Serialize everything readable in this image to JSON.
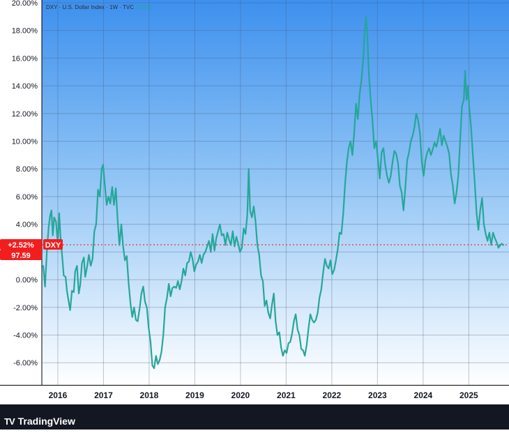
{
  "chart_data": {
    "type": "line",
    "legend_text": {
      "symbol": "DXY",
      "name": "U.S. Dollar Index",
      "interval": "1W",
      "source": "TVC",
      "change": "2.52%"
    },
    "y_ticks": [
      "20.00%",
      "18.00%",
      "16.00%",
      "14.00%",
      "12.00%",
      "10.00%",
      "8.00%",
      "6.00%",
      "4.00%",
      "2.00%",
      "0.00%",
      "-2.00%",
      "-4.00%",
      "-6.00%"
    ],
    "y_tick_values": [
      20,
      18,
      16,
      14,
      12,
      10,
      8,
      6,
      4,
      2,
      0,
      -2,
      -4,
      -6
    ],
    "ylim": [
      -7.6,
      20.2
    ],
    "x_ticks": [
      "2016",
      "2017",
      "2018",
      "2019",
      "2020",
      "2021",
      "2022",
      "2023",
      "2024",
      "2025"
    ],
    "x_tick_values": [
      2016,
      2017,
      2018,
      2019,
      2020,
      2021,
      2022,
      2023,
      2024,
      2025
    ],
    "xlim": [
      2015.65,
      2025.88
    ],
    "series": [
      {
        "values": [
          [
            2015.68,
            1.0
          ],
          [
            2015.72,
            -0.5
          ],
          [
            2015.76,
            2.0
          ],
          [
            2015.8,
            3.8
          ],
          [
            2015.83,
            4.6
          ],
          [
            2015.86,
            5.0
          ],
          [
            2015.89,
            3.2
          ],
          [
            2015.92,
            4.5
          ],
          [
            2015.96,
            4.2
          ],
          [
            2016.0,
            2.6
          ],
          [
            2016.03,
            4.8
          ],
          [
            2016.06,
            3.0
          ],
          [
            2016.1,
            1.5
          ],
          [
            2016.13,
            0.3
          ],
          [
            2016.17,
            0.2
          ],
          [
            2016.2,
            -0.8
          ],
          [
            2016.24,
            -1.6
          ],
          [
            2016.27,
            -2.2
          ],
          [
            2016.31,
            -0.8
          ],
          [
            2016.35,
            -0.9
          ],
          [
            2016.38,
            0.6
          ],
          [
            2016.42,
            1.0
          ],
          [
            2016.46,
            -1.0
          ],
          [
            2016.49,
            -0.4
          ],
          [
            2016.53,
            1.2
          ],
          [
            2016.57,
            1.6
          ],
          [
            2016.6,
            0.2
          ],
          [
            2016.64,
            0.9
          ],
          [
            2016.68,
            1.8
          ],
          [
            2016.72,
            1.0
          ],
          [
            2016.76,
            1.5
          ],
          [
            2016.8,
            3.5
          ],
          [
            2016.84,
            4.0
          ],
          [
            2016.88,
            6.5
          ],
          [
            2016.92,
            6.0
          ],
          [
            2016.96,
            8.0
          ],
          [
            2016.99,
            8.3
          ],
          [
            2017.03,
            6.8
          ],
          [
            2017.07,
            5.4
          ],
          [
            2017.11,
            6.0
          ],
          [
            2017.15,
            5.5
          ],
          [
            2017.19,
            6.7
          ],
          [
            2017.23,
            5.4
          ],
          [
            2017.27,
            6.6
          ],
          [
            2017.31,
            4.3
          ],
          [
            2017.35,
            2.5
          ],
          [
            2017.39,
            4.0
          ],
          [
            2017.43,
            2.4
          ],
          [
            2017.47,
            1.4
          ],
          [
            2017.51,
            1.7
          ],
          [
            2017.55,
            -0.2
          ],
          [
            2017.59,
            -1.7
          ],
          [
            2017.63,
            -2.7
          ],
          [
            2017.67,
            -2.0
          ],
          [
            2017.71,
            -2.9
          ],
          [
            2017.75,
            -3.0
          ],
          [
            2017.79,
            -2.1
          ],
          [
            2017.83,
            -1.0
          ],
          [
            2017.87,
            -0.5
          ],
          [
            2017.91,
            -1.6
          ],
          [
            2017.95,
            -2.0
          ],
          [
            2017.99,
            -3.5
          ],
          [
            2018.03,
            -4.5
          ],
          [
            2018.07,
            -6.2
          ],
          [
            2018.11,
            -6.4
          ],
          [
            2018.15,
            -5.5
          ],
          [
            2018.19,
            -6.1
          ],
          [
            2018.23,
            -5.8
          ],
          [
            2018.27,
            -5.2
          ],
          [
            2018.31,
            -4.0
          ],
          [
            2018.35,
            -2.0
          ],
          [
            2018.39,
            -1.3
          ],
          [
            2018.43,
            -0.3
          ],
          [
            2018.47,
            -1.2
          ],
          [
            2018.51,
            -0.6
          ],
          [
            2018.55,
            -0.5
          ],
          [
            2018.59,
            -0.6
          ],
          [
            2018.63,
            -0.1
          ],
          [
            2018.67,
            -0.7
          ],
          [
            2018.71,
            -0.1
          ],
          [
            2018.75,
            0.8
          ],
          [
            2018.79,
            0.3
          ],
          [
            2018.83,
            1.2
          ],
          [
            2018.87,
            1.3
          ],
          [
            2018.91,
            2.0
          ],
          [
            2018.95,
            1.5
          ],
          [
            2018.99,
            0.6
          ],
          [
            2019.03,
            1.1
          ],
          [
            2019.07,
            1.3
          ],
          [
            2019.11,
            1.8
          ],
          [
            2019.15,
            1.2
          ],
          [
            2019.19,
            1.8
          ],
          [
            2019.23,
            2.0
          ],
          [
            2019.27,
            2.4
          ],
          [
            2019.31,
            2.8
          ],
          [
            2019.35,
            2.0
          ],
          [
            2019.39,
            3.3
          ],
          [
            2019.43,
            2.1
          ],
          [
            2019.47,
            3.0
          ],
          [
            2019.51,
            3.5
          ],
          [
            2019.55,
            4.0
          ],
          [
            2019.59,
            3.2
          ],
          [
            2019.63,
            3.3
          ],
          [
            2019.67,
            2.5
          ],
          [
            2019.71,
            3.4
          ],
          [
            2019.75,
            2.9
          ],
          [
            2019.79,
            2.5
          ],
          [
            2019.83,
            3.5
          ],
          [
            2019.87,
            2.4
          ],
          [
            2019.91,
            3.1
          ],
          [
            2019.95,
            2.6
          ],
          [
            2019.99,
            2.0
          ],
          [
            2020.03,
            2.3
          ],
          [
            2020.07,
            3.7
          ],
          [
            2020.11,
            3.3
          ],
          [
            2020.15,
            4.7
          ],
          [
            2020.18,
            8.0
          ],
          [
            2020.21,
            5.0
          ],
          [
            2020.25,
            4.5
          ],
          [
            2020.29,
            5.3
          ],
          [
            2020.33,
            4.2
          ],
          [
            2020.37,
            2.5
          ],
          [
            2020.41,
            1.8
          ],
          [
            2020.45,
            0.3
          ],
          [
            2020.49,
            -0.1
          ],
          [
            2020.53,
            -1.9
          ],
          [
            2020.57,
            -1.5
          ],
          [
            2020.61,
            -2.4
          ],
          [
            2020.65,
            -2.8
          ],
          [
            2020.69,
            -1.8
          ],
          [
            2020.73,
            -1.0
          ],
          [
            2020.77,
            -3.0
          ],
          [
            2020.81,
            -4.0
          ],
          [
            2020.85,
            -3.8
          ],
          [
            2020.89,
            -4.9
          ],
          [
            2020.93,
            -5.5
          ],
          [
            2020.97,
            -5.1
          ],
          [
            2021.01,
            -5.3
          ],
          [
            2021.05,
            -4.6
          ],
          [
            2021.09,
            -4.5
          ],
          [
            2021.13,
            -3.9
          ],
          [
            2021.17,
            -3.0
          ],
          [
            2021.21,
            -2.5
          ],
          [
            2021.25,
            -3.6
          ],
          [
            2021.29,
            -4.0
          ],
          [
            2021.33,
            -5.0
          ],
          [
            2021.37,
            -5.1
          ],
          [
            2021.41,
            -5.5
          ],
          [
            2021.45,
            -4.7
          ],
          [
            2021.49,
            -3.5
          ],
          [
            2021.53,
            -2.5
          ],
          [
            2021.57,
            -2.9
          ],
          [
            2021.61,
            -3.1
          ],
          [
            2021.65,
            -2.9
          ],
          [
            2021.69,
            -2.4
          ],
          [
            2021.73,
            -1.3
          ],
          [
            2021.77,
            -0.7
          ],
          [
            2021.81,
            0.5
          ],
          [
            2021.85,
            1.5
          ],
          [
            2021.89,
            1.0
          ],
          [
            2021.93,
            0.8
          ],
          [
            2021.97,
            1.4
          ],
          [
            2022.01,
            0.4
          ],
          [
            2022.05,
            0.7
          ],
          [
            2022.09,
            1.4
          ],
          [
            2022.13,
            2.2
          ],
          [
            2022.17,
            3.4
          ],
          [
            2022.21,
            3.3
          ],
          [
            2022.25,
            4.8
          ],
          [
            2022.29,
            6.9
          ],
          [
            2022.33,
            8.5
          ],
          [
            2022.37,
            9.5
          ],
          [
            2022.41,
            10.0
          ],
          [
            2022.45,
            9.0
          ],
          [
            2022.49,
            10.6
          ],
          [
            2022.53,
            12.7
          ],
          [
            2022.57,
            11.6
          ],
          [
            2022.61,
            13.4
          ],
          [
            2022.65,
            14.5
          ],
          [
            2022.69,
            16.0
          ],
          [
            2022.72,
            18.0
          ],
          [
            2022.75,
            19.0
          ],
          [
            2022.78,
            17.5
          ],
          [
            2022.81,
            15.0
          ],
          [
            2022.85,
            13.0
          ],
          [
            2022.89,
            11.5
          ],
          [
            2022.93,
            9.5
          ],
          [
            2022.97,
            10.0
          ],
          [
            2023.01,
            8.7
          ],
          [
            2023.05,
            7.3
          ],
          [
            2023.09,
            9.2
          ],
          [
            2023.13,
            9.5
          ],
          [
            2023.17,
            8.3
          ],
          [
            2023.21,
            7.5
          ],
          [
            2023.25,
            7.0
          ],
          [
            2023.29,
            7.5
          ],
          [
            2023.33,
            8.5
          ],
          [
            2023.37,
            9.3
          ],
          [
            2023.41,
            9.1
          ],
          [
            2023.45,
            8.4
          ],
          [
            2023.49,
            6.8
          ],
          [
            2023.53,
            6.3
          ],
          [
            2023.57,
            5.0
          ],
          [
            2023.61,
            6.6
          ],
          [
            2023.65,
            8.6
          ],
          [
            2023.69,
            9.2
          ],
          [
            2023.73,
            10.0
          ],
          [
            2023.77,
            10.4
          ],
          [
            2023.81,
            11.0
          ],
          [
            2023.85,
            12.0
          ],
          [
            2023.89,
            11.5
          ],
          [
            2023.93,
            10.6
          ],
          [
            2023.97,
            8.5
          ],
          [
            2024.01,
            7.5
          ],
          [
            2024.05,
            8.6
          ],
          [
            2024.09,
            9.2
          ],
          [
            2024.13,
            9.5
          ],
          [
            2024.17,
            9.0
          ],
          [
            2024.21,
            9.4
          ],
          [
            2024.25,
            9.9
          ],
          [
            2024.29,
            9.6
          ],
          [
            2024.33,
            10.2
          ],
          [
            2024.37,
            10.9
          ],
          [
            2024.41,
            9.7
          ],
          [
            2024.45,
            10.4
          ],
          [
            2024.49,
            10.0
          ],
          [
            2024.53,
            9.6
          ],
          [
            2024.57,
            9.1
          ],
          [
            2024.61,
            7.6
          ],
          [
            2024.65,
            6.8
          ],
          [
            2024.69,
            5.5
          ],
          [
            2024.73,
            6.3
          ],
          [
            2024.77,
            7.5
          ],
          [
            2024.81,
            10.0
          ],
          [
            2024.85,
            12.5
          ],
          [
            2024.89,
            13.0
          ],
          [
            2024.92,
            15.1
          ],
          [
            2024.95,
            13.0
          ],
          [
            2024.98,
            14.0
          ],
          [
            2025.01,
            12.5
          ],
          [
            2025.05,
            11.0
          ],
          [
            2025.09,
            8.9
          ],
          [
            2025.13,
            7.0
          ],
          [
            2025.17,
            4.8
          ],
          [
            2025.21,
            3.6
          ],
          [
            2025.25,
            5.0
          ],
          [
            2025.29,
            5.9
          ],
          [
            2025.33,
            4.0
          ],
          [
            2025.37,
            3.3
          ],
          [
            2025.41,
            2.8
          ],
          [
            2025.45,
            3.4
          ],
          [
            2025.49,
            2.5
          ],
          [
            2025.53,
            3.4
          ],
          [
            2025.57,
            3.0
          ],
          [
            2025.61,
            2.7
          ],
          [
            2025.65,
            2.3
          ],
          [
            2025.69,
            2.5
          ],
          [
            2025.72,
            2.6
          ],
          [
            2025.76,
            2.5
          ]
        ]
      }
    ],
    "reference_line_value": 2.52,
    "last_value_label": "+2.52%",
    "symbol_label": "DXY",
    "price_label": "97.59",
    "colors": {
      "line": "#26a69a",
      "reference_line": "#ef1e1e",
      "label_bg": "#f21e1e",
      "axis_bg": "#ffffff",
      "bottom_bar": "#131722",
      "grid": "#4a5a78"
    },
    "grid": true
  },
  "branding": {
    "logo_text": "TV",
    "name": "TradingView"
  }
}
